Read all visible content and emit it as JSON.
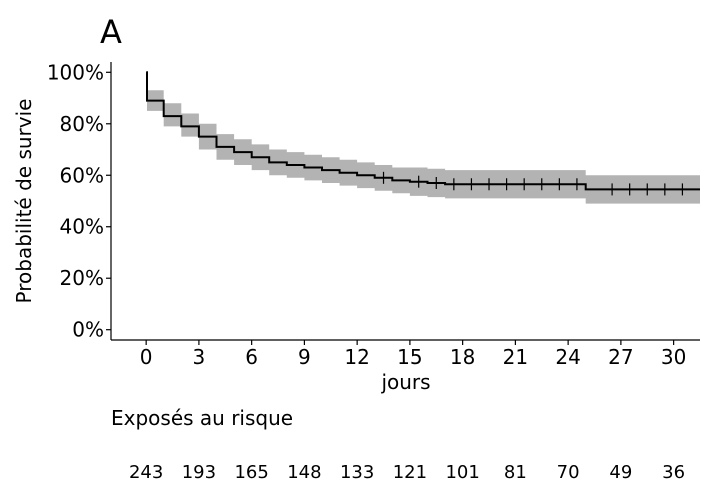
{
  "panel_label": "A",
  "chart_data": {
    "type": "line",
    "subtype": "kaplan-meier",
    "xlabel": "jours",
    "ylabel": "Probabilité de survie",
    "xlim": [
      -2,
      31.5
    ],
    "ylim": [
      -0.04,
      1.04
    ],
    "x_ticks": [
      0,
      3,
      6,
      9,
      12,
      15,
      18,
      21,
      24,
      27,
      30
    ],
    "y_ticks": [
      0,
      0.2,
      0.4,
      0.6,
      0.8,
      1.0
    ],
    "y_tick_labels": [
      "0%",
      "20%",
      "40%",
      "60%",
      "80%",
      "100%"
    ],
    "grid": false,
    "colors": {
      "line": "#000000",
      "ci_band": "#b3b3b3"
    },
    "series": [
      {
        "steps": [
          {
            "t": 0,
            "s": 1.0,
            "lo": 1.0,
            "hi": 1.0
          },
          {
            "t": 0.05,
            "s": 0.89,
            "lo": 0.85,
            "hi": 0.93
          },
          {
            "t": 1,
            "s": 0.83,
            "lo": 0.79,
            "hi": 0.88
          },
          {
            "t": 2,
            "s": 0.79,
            "lo": 0.75,
            "hi": 0.84
          },
          {
            "t": 3,
            "s": 0.75,
            "lo": 0.7,
            "hi": 0.8
          },
          {
            "t": 4,
            "s": 0.71,
            "lo": 0.66,
            "hi": 0.76
          },
          {
            "t": 5,
            "s": 0.69,
            "lo": 0.64,
            "hi": 0.74
          },
          {
            "t": 6,
            "s": 0.67,
            "lo": 0.62,
            "hi": 0.72
          },
          {
            "t": 7,
            "s": 0.65,
            "lo": 0.6,
            "hi": 0.7
          },
          {
            "t": 8,
            "s": 0.64,
            "lo": 0.59,
            "hi": 0.69
          },
          {
            "t": 9,
            "s": 0.63,
            "lo": 0.58,
            "hi": 0.68
          },
          {
            "t": 10,
            "s": 0.62,
            "lo": 0.57,
            "hi": 0.67
          },
          {
            "t": 11,
            "s": 0.61,
            "lo": 0.56,
            "hi": 0.66
          },
          {
            "t": 12,
            "s": 0.6,
            "lo": 0.55,
            "hi": 0.65
          },
          {
            "t": 13,
            "s": 0.59,
            "lo": 0.54,
            "hi": 0.64
          },
          {
            "t": 14,
            "s": 0.58,
            "lo": 0.53,
            "hi": 0.63
          },
          {
            "t": 15,
            "s": 0.575,
            "lo": 0.52,
            "hi": 0.63
          },
          {
            "t": 16,
            "s": 0.57,
            "lo": 0.515,
            "hi": 0.625
          },
          {
            "t": 17,
            "s": 0.565,
            "lo": 0.51,
            "hi": 0.62
          },
          {
            "t": 25,
            "s": 0.545,
            "lo": 0.49,
            "hi": 0.6
          }
        ],
        "end": 31.5,
        "censored": [
          13.5,
          15.5,
          16.5,
          17.5,
          18.5,
          19.5,
          20.5,
          21.5,
          22.5,
          23.5,
          24.5,
          26.5,
          27.5,
          28.5,
          29.5,
          30.5
        ]
      }
    ]
  },
  "risk_table": {
    "title": "Exposés au risque",
    "times": [
      0,
      3,
      6,
      9,
      12,
      15,
      18,
      21,
      24,
      27,
      30
    ],
    "counts": [
      "243",
      "193",
      "165",
      "148",
      "133",
      "121",
      "101",
      "81",
      "70",
      "49",
      "36"
    ]
  }
}
